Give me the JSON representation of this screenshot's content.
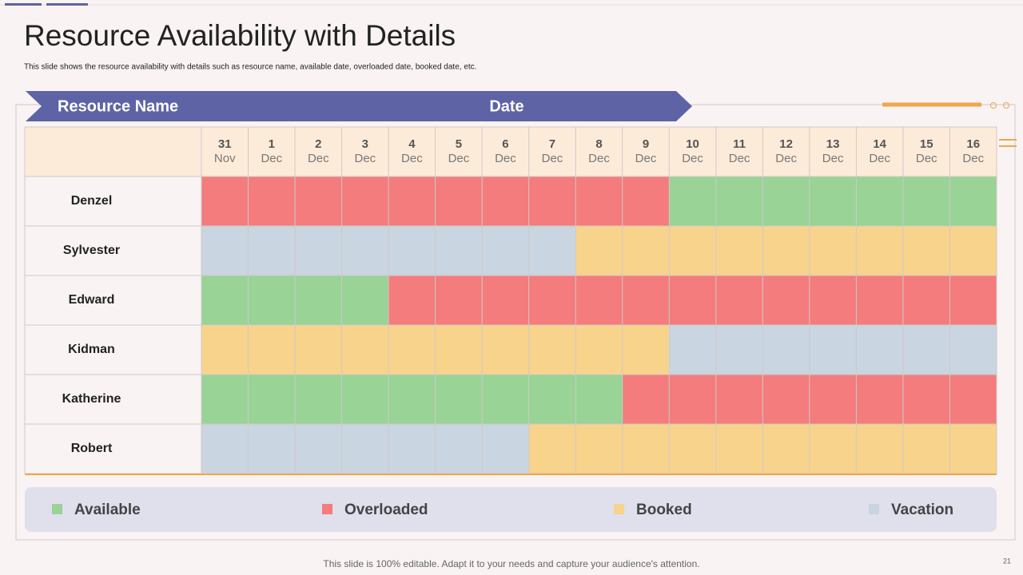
{
  "title": "Resource Availability with Details",
  "subtitle": "This slide shows the resource availability with details such as resource name, available date, overloaded date, booked date, etc.",
  "banner": {
    "left": "Resource Name",
    "right": "Date"
  },
  "dates": [
    {
      "day": "31",
      "month": "Nov"
    },
    {
      "day": "1",
      "month": "Dec"
    },
    {
      "day": "2",
      "month": "Dec"
    },
    {
      "day": "3",
      "month": "Dec"
    },
    {
      "day": "4",
      "month": "Dec"
    },
    {
      "day": "5",
      "month": "Dec"
    },
    {
      "day": "6",
      "month": "Dec"
    },
    {
      "day": "7",
      "month": "Dec"
    },
    {
      "day": "8",
      "month": "Dec"
    },
    {
      "day": "9",
      "month": "Dec"
    },
    {
      "day": "10",
      "month": "Dec"
    },
    {
      "day": "11",
      "month": "Dec"
    },
    {
      "day": "12",
      "month": "Dec"
    },
    {
      "day": "13",
      "month": "Dec"
    },
    {
      "day": "14",
      "month": "Dec"
    },
    {
      "day": "15",
      "month": "Dec"
    },
    {
      "day": "16",
      "month": "Dec"
    }
  ],
  "rows": [
    {
      "name": "Denzel",
      "cells": [
        "Overloaded",
        "Overloaded",
        "Overloaded",
        "Overloaded",
        "Overloaded",
        "Overloaded",
        "Overloaded",
        "Overloaded",
        "Overloaded",
        "Overloaded",
        "Available",
        "Available",
        "Available",
        "Available",
        "Available",
        "Available",
        "Available"
      ]
    },
    {
      "name": "Sylvester",
      "cells": [
        "Vacation",
        "Vacation",
        "Vacation",
        "Vacation",
        "Vacation",
        "Vacation",
        "Vacation",
        "Vacation",
        "Booked",
        "Booked",
        "Booked",
        "Booked",
        "Booked",
        "Booked",
        "Booked",
        "Booked",
        "Booked"
      ]
    },
    {
      "name": "Edward",
      "cells": [
        "Available",
        "Available",
        "Available",
        "Available",
        "Overloaded",
        "Overloaded",
        "Overloaded",
        "Overloaded",
        "Overloaded",
        "Overloaded",
        "Overloaded",
        "Overloaded",
        "Overloaded",
        "Overloaded",
        "Overloaded",
        "Overloaded",
        "Overloaded"
      ]
    },
    {
      "name": "Kidman",
      "cells": [
        "Booked",
        "Booked",
        "Booked",
        "Booked",
        "Booked",
        "Booked",
        "Booked",
        "Booked",
        "Booked",
        "Booked",
        "Vacation",
        "Vacation",
        "Vacation",
        "Vacation",
        "Vacation",
        "Vacation",
        "Vacation"
      ]
    },
    {
      "name": "Katherine",
      "cells": [
        "Available",
        "Available",
        "Available",
        "Available",
        "Available",
        "Available",
        "Available",
        "Available",
        "Available",
        "Overloaded",
        "Overloaded",
        "Overloaded",
        "Overloaded",
        "Overloaded",
        "Overloaded",
        "Overloaded",
        "Overloaded"
      ]
    },
    {
      "name": "Robert",
      "cells": [
        "Vacation",
        "Vacation",
        "Vacation",
        "Vacation",
        "Vacation",
        "Vacation",
        "Vacation",
        "Booked",
        "Booked",
        "Booked",
        "Booked",
        "Booked",
        "Booked",
        "Booked",
        "Booked",
        "Booked",
        "Booked"
      ]
    }
  ],
  "legend": [
    {
      "label": "Available",
      "color": "#99d396"
    },
    {
      "label": "Overloaded",
      "color": "#f47c7c"
    },
    {
      "label": "Booked",
      "color": "#f8d38c"
    },
    {
      "label": "Vacation",
      "color": "#c9d5e0"
    }
  ],
  "footer": "This slide is 100% editable. Adapt it to your needs and capture your audience's attention.",
  "page_number": "21"
}
